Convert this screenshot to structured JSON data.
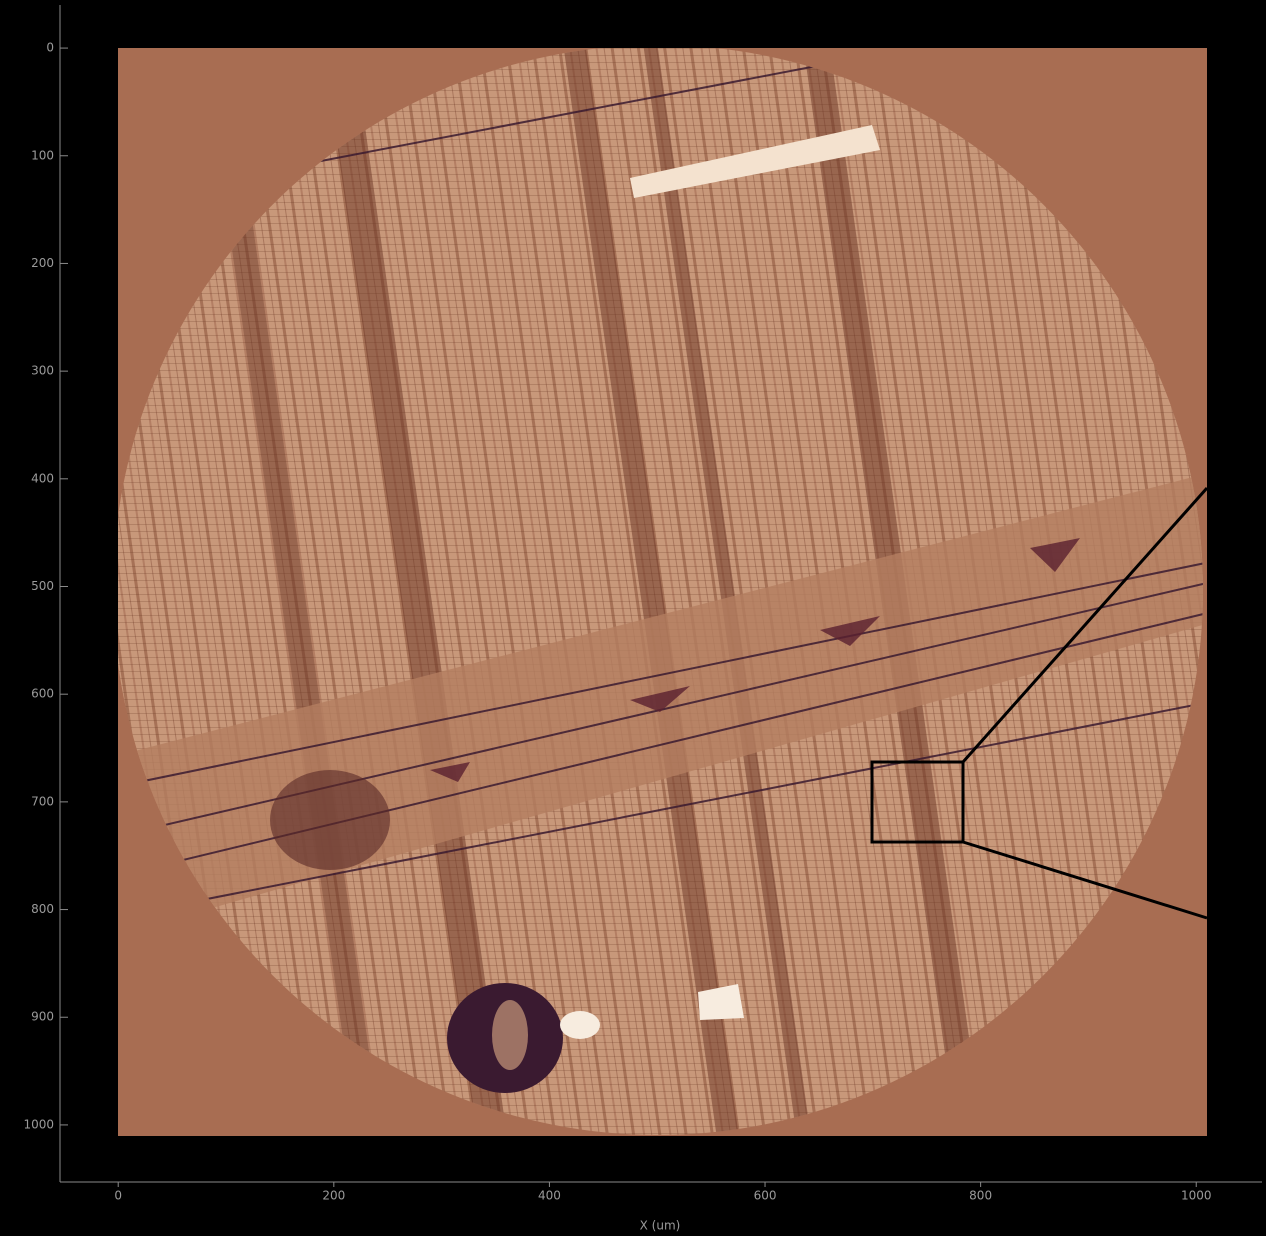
{
  "chart_data": {
    "type": "image",
    "xlabel": "X (um)",
    "xlim": [
      -54,
      1061
    ],
    "ylim": [
      -40,
      1053
    ],
    "invert_y": true,
    "xticks": [
      0,
      200,
      400,
      600,
      800,
      1000
    ],
    "yticks": [
      0,
      100,
      200,
      300,
      400,
      500,
      600,
      700,
      800,
      900,
      1000
    ]
  }
}
